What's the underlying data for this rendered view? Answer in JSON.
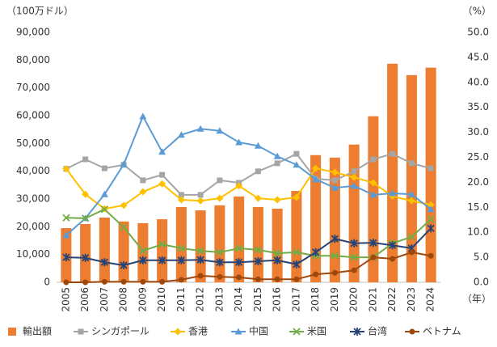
{
  "chart_data": {
    "type": "bar",
    "y_label": "（100万ドル）",
    "y2_label": "（%）",
    "x_label": "（年）",
    "categories": [
      "2005",
      "2006",
      "2007",
      "2008",
      "2009",
      "2010",
      "2011",
      "2012",
      "2013",
      "2014",
      "2015",
      "2016",
      "2017",
      "2018",
      "2019",
      "2020",
      "2021",
      "2022",
      "2023",
      "2024"
    ],
    "ylim": [
      0,
      90000
    ],
    "yticks": [
      {
        "value": 0,
        "label": "0"
      },
      {
        "value": 10000,
        "label": "10,000"
      },
      {
        "value": 20000,
        "label": "20,000"
      },
      {
        "value": 30000,
        "label": "30,000"
      },
      {
        "value": 40000,
        "label": "40,000"
      },
      {
        "value": 50000,
        "label": "50,000"
      },
      {
        "value": 60000,
        "label": "60,000"
      },
      {
        "value": 70000,
        "label": "70,000"
      },
      {
        "value": 80000,
        "label": "80,000"
      },
      {
        "value": 90000,
        "label": "90,000"
      }
    ],
    "y2lim": [
      0,
      50
    ],
    "y2ticks": [
      {
        "value": 0,
        "label": "0.0"
      },
      {
        "value": 5,
        "label": "5.0"
      },
      {
        "value": 10,
        "label": "10.0"
      },
      {
        "value": 15,
        "label": "15.0"
      },
      {
        "value": 20,
        "label": "20.0"
      },
      {
        "value": 25,
        "label": "25.0"
      },
      {
        "value": 30,
        "label": "30.0"
      },
      {
        "value": 35,
        "label": "35.0"
      },
      {
        "value": 40,
        "label": "40.0"
      },
      {
        "value": 45,
        "label": "45.0"
      },
      {
        "value": 50,
        "label": "50.0"
      }
    ],
    "grid": false,
    "legend": "bottom",
    "series": [
      {
        "name": "輸出額",
        "type": "bar",
        "color": "#ed7d31",
        "values": [
          19500,
          21000,
          23300,
          21900,
          21300,
          22700,
          27100,
          25900,
          27700,
          30900,
          27100,
          26500,
          32900,
          45800,
          44900,
          49600,
          59800,
          78700,
          74600,
          77300
        ]
      },
      {
        "name": "シンガポール",
        "type": "line",
        "axis": "y2",
        "marker": "square",
        "color": "#a5a5a5",
        "values": [
          22.7,
          24.6,
          22.8,
          23.5,
          20.4,
          21.5,
          17.5,
          17.5,
          20.4,
          19.9,
          22.2,
          23.8,
          25.7,
          20.7,
          20.4,
          22.2,
          24.6,
          25.7,
          23.8,
          22.8
        ]
      },
      {
        "name": "香港",
        "type": "line",
        "axis": "y2",
        "marker": "diamond",
        "color": "#ffc000",
        "values": [
          22.7,
          17.6,
          14.7,
          15.4,
          18.1,
          19.7,
          16.5,
          16.3,
          16.8,
          19.3,
          16.8,
          16.5,
          17.0,
          22.8,
          22.0,
          21.0,
          19.9,
          17.2,
          16.3,
          15.5
        ]
      },
      {
        "name": "中国",
        "type": "line",
        "axis": "y2",
        "marker": "triangle",
        "color": "#5b9bd5",
        "values": [
          9.4,
          12.8,
          17.6,
          23.6,
          33.2,
          26.1,
          29.5,
          30.7,
          30.3,
          28.0,
          27.3,
          25.2,
          23.5,
          20.6,
          18.9,
          19.3,
          17.5,
          17.8,
          17.6,
          14.6
        ]
      },
      {
        "name": "米国",
        "type": "line",
        "axis": "y2",
        "marker": "x",
        "color": "#70ad47",
        "values": [
          12.9,
          12.8,
          14.6,
          11.0,
          6.3,
          7.6,
          6.8,
          6.3,
          6.0,
          6.8,
          6.5,
          5.8,
          6.0,
          5.3,
          5.3,
          5.0,
          5.0,
          7.8,
          9.1,
          12.6
        ]
      },
      {
        "name": "台湾",
        "type": "line",
        "axis": "y2",
        "marker": "star",
        "color": "#264478",
        "values": [
          5.0,
          4.9,
          4.0,
          3.4,
          4.4,
          4.4,
          4.4,
          4.5,
          4.0,
          4.0,
          4.2,
          4.4,
          3.6,
          6.0,
          8.7,
          7.8,
          7.9,
          7.4,
          6.8,
          10.8
        ]
      },
      {
        "name": "ベトナム",
        "type": "line",
        "axis": "y2",
        "marker": "circle",
        "color": "#9e480e",
        "values": [
          0.0,
          0.0,
          0.1,
          0.1,
          0.1,
          0.1,
          0.5,
          1.3,
          1.1,
          1.0,
          0.6,
          0.6,
          0.6,
          1.6,
          1.9,
          2.4,
          5.0,
          4.7,
          6.0,
          5.3
        ]
      }
    ]
  }
}
